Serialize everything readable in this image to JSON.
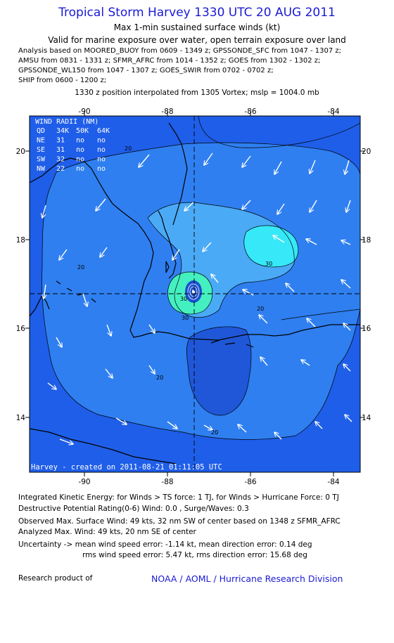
{
  "header": {
    "title": "Tropical Storm Harvey 1330 UTC 20 AUG 2011",
    "subtitle": "Max 1-min sustained surface winds (kt)",
    "validity": "Valid for marine exposure over water, open terrain exposure over land"
  },
  "analysis_lines": [
    "Analysis based on MOORED_BUOY from 0609 - 1349 z; GPSSONDE_SFC from 1047 - 1307 z;",
    "AMSU from 0831 - 1331 z; SFMR_AFRC from 1014 - 1352 z; GOES from 1302 - 1302 z;",
    "GPSSONDE_WL150 from 1047 - 1307 z; GOES_SWIR from 0702 - 0702 z;",
    "SHIP from 0600 - 1200 z;"
  ],
  "position_note": "1330 z position interpolated from 1305 Vortex; mslp = 1004.0 mb",
  "map": {
    "lon_ticks": [
      "-90",
      "-88",
      "-86",
      "-84"
    ],
    "lat_ticks": [
      "20",
      "18",
      "16",
      "14"
    ],
    "center": {
      "lon": -87.3,
      "lat": 16.8
    },
    "contour_labels": [
      "20",
      "20",
      "30",
      "30",
      "20",
      "30",
      "20",
      "20"
    ],
    "colors": {
      "deep": "#1f5ee8",
      "band20": "#2f7ff0",
      "band30": "#4aaaf6",
      "band40": "#36e8f8",
      "band45": "#44f0c0",
      "land": "#000000",
      "low": "#1f57d8"
    },
    "wind_radii": {
      "header": "WIND RADII (NM)",
      "columns": [
        "QD",
        "34K",
        "50K",
        "64K"
      ],
      "rows": [
        [
          "NE",
          "31",
          "no",
          "no"
        ],
        [
          "SE",
          "31",
          "no",
          "no"
        ],
        [
          "SW",
          "32",
          "no",
          "no"
        ],
        [
          "NW",
          "22",
          "no",
          "no"
        ]
      ]
    },
    "credit": "Harvey - created on 2011-08-21 01:11:05 UTC"
  },
  "footer": {
    "ike": "Integrated Kinetic Energy:  for Winds > TS force: 1 TJ,  for Winds > Hurricane Force: 0 TJ",
    "dpr": "Destructive Potential Rating(0-6)   Wind: 0.0 , Surge/Waves: 0.3",
    "observed": "Observed Max. Surface Wind: 49 kts, 32 nm SW of center based on 1348 z SFMR_AFRC",
    "analyzed": "Analyzed Max. Wind: 49 kts, 20 nm SE of center",
    "uncertainty1": "Uncertainty -> mean wind speed error:  -1.14 kt,   mean direction error: 0.14 deg",
    "uncertainty2": "rms wind speed error: 5.47 kt,   rms direction error: 15.68 deg",
    "research_label": "Research product of",
    "org": "NOAA / AOML / Hurricane Research Division"
  }
}
